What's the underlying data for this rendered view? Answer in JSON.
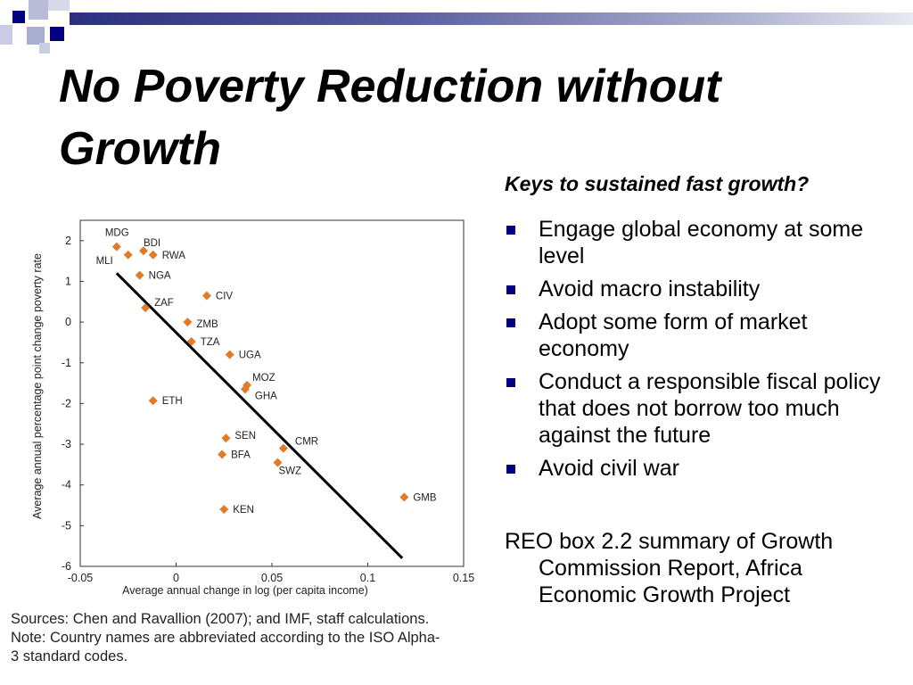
{
  "slide": {
    "title": "No Poverty Reduction without Growth",
    "subheading": "Keys to sustained fast growth?",
    "bullets": [
      "Engage global economy at some level",
      "Avoid macro instability",
      "Adopt some form of market economy",
      "Conduct a responsible fiscal policy that does not borrow too much against the future",
      "Avoid civil war"
    ],
    "note": "REO box 2.2 summary of Growth Commission Report, Africa Economic Growth Project",
    "sources": [
      "Sources: Chen and Ravallion (2007); and IMF, staff calculations.",
      "Note: Country names are abbreviated according to the ISO Alpha-",
      "3 standard codes."
    ],
    "colors": {
      "accent": "#000080",
      "decoration_light": "#b8bcd8",
      "point": "#e07b2a"
    }
  },
  "chart_data": {
    "type": "scatter",
    "xlabel": "Average annual change in log (per capita income)",
    "ylabel": "Average annual percentage point change poverty rate",
    "xlim": [
      -0.05,
      0.15
    ],
    "ylim": [
      -6,
      2.5
    ],
    "xticks": [
      -0.05,
      0,
      0.05,
      0.1,
      0.15
    ],
    "xtick_labels": [
      "-0.05",
      "0",
      "0.05",
      "0.1",
      "0.15"
    ],
    "yticks": [
      2,
      1,
      0,
      -1,
      -2,
      -3,
      -4,
      -5,
      -6
    ],
    "ytick_labels": [
      "2",
      "1",
      "0",
      "-1",
      "-2",
      "-3",
      "-4",
      "-5",
      "-6"
    ],
    "grid": false,
    "points": [
      {
        "label": "MDG",
        "x": -0.031,
        "y": 1.85
      },
      {
        "label": "MLI",
        "x": -0.025,
        "y": 1.65
      },
      {
        "label": "BDI",
        "x": -0.017,
        "y": 1.75
      },
      {
        "label": "RWA",
        "x": -0.012,
        "y": 1.65
      },
      {
        "label": "NGA",
        "x": -0.019,
        "y": 1.15
      },
      {
        "label": "CIV",
        "x": 0.016,
        "y": 0.65
      },
      {
        "label": "ZAF",
        "x": -0.016,
        "y": 0.35
      },
      {
        "label": "ZMB",
        "x": 0.006,
        "y": 0.0
      },
      {
        "label": "TZA",
        "x": 0.008,
        "y": -0.48
      },
      {
        "label": "UGA",
        "x": 0.028,
        "y": -0.8
      },
      {
        "label": "MOZ",
        "x": 0.037,
        "y": -1.55
      },
      {
        "label": "GHA",
        "x": 0.036,
        "y": -1.65
      },
      {
        "label": "ETH",
        "x": -0.012,
        "y": -1.93
      },
      {
        "label": "SEN",
        "x": 0.026,
        "y": -2.85
      },
      {
        "label": "BFA",
        "x": 0.024,
        "y": -3.25
      },
      {
        "label": "CMR",
        "x": 0.056,
        "y": -3.1
      },
      {
        "label": "SWZ",
        "x": 0.053,
        "y": -3.45
      },
      {
        "label": "GMB",
        "x": 0.119,
        "y": -4.3
      },
      {
        "label": "KEN",
        "x": 0.025,
        "y": -4.6
      }
    ],
    "trendline": {
      "x": [
        -0.031,
        0.118
      ],
      "y": [
        1.2,
        -5.8
      ]
    }
  }
}
